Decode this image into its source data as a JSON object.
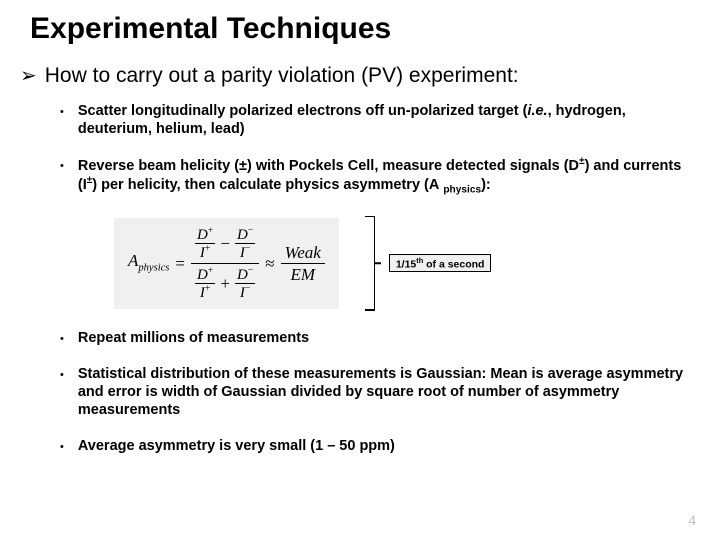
{
  "title": "Experimental Techniques",
  "main_bullet": "How to carry out a parity violation (PV) experiment:",
  "bullets": {
    "b1_a": "Scatter longitudinally polarized electrons off un-polarized target (",
    "b1_i": "i.e.",
    "b1_b": ", hydrogen, deuterium, helium, lead)",
    "b2_a": "Reverse beam helicity (±) with Pockels Cell, measure detected signals (D",
    "b2_b": ") and currents (I",
    "b2_c": ") per helicity, then calculate physics asymmetry (A",
    "b2_d": "):",
    "b3": "Repeat millions of measurements",
    "b4": "Statistical distribution of these measurements is Gaussian: Mean is average asymmetry and error is width of Gaussian divided by square root of number of asymmetry measurements",
    "b5": "Average asymmetry is very small (1 – 50 ppm)"
  },
  "sym": {
    "pm": "±",
    "physics": "physics",
    "plus": "+",
    "minus": "−"
  },
  "formula": {
    "A": "A",
    "sub": "physics",
    "eq": "=",
    "approx": "≈",
    "D": "D",
    "I": "I",
    "Weak": "Weak",
    "EM": "EM"
  },
  "caption_a": "1/15",
  "caption_th": "th",
  "caption_b": " of a second",
  "page": "4",
  "colors": {
    "bg": "#ffffff",
    "text": "#000000",
    "formula_bg": "#f0f0f0",
    "page_num": "#bfbfbf"
  }
}
